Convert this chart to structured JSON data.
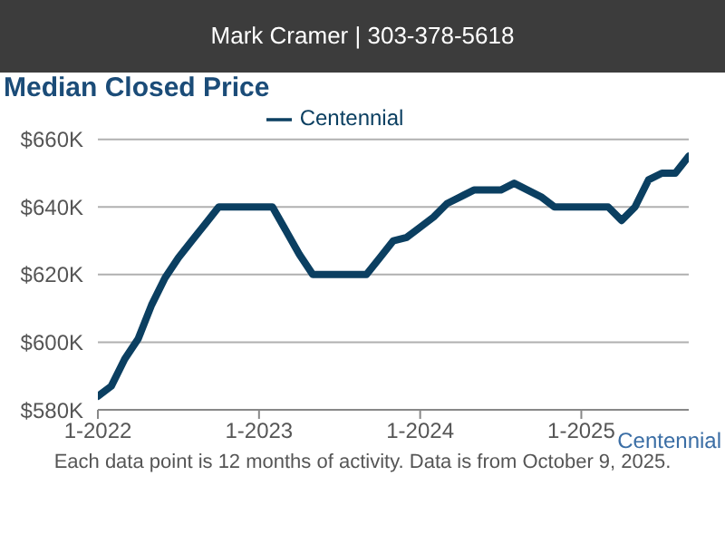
{
  "chart_data": {
    "type": "line",
    "title": "Median Closed Price",
    "annotations": [
      "Mark Cramer | 303-378-5618",
      "Each data point is 12 months of activity. Data is from October 9, 2025.",
      "Centennial"
    ],
    "x": [
      "2022-01",
      "2022-02",
      "2022-03",
      "2022-04",
      "2022-05",
      "2022-06",
      "2022-07",
      "2022-08",
      "2022-09",
      "2022-10",
      "2022-11",
      "2022-12",
      "2023-01",
      "2023-02",
      "2023-03",
      "2023-04",
      "2023-05",
      "2023-06",
      "2023-07",
      "2023-08",
      "2023-09",
      "2023-10",
      "2023-11",
      "2023-12",
      "2024-01",
      "2024-02",
      "2024-03",
      "2024-04",
      "2024-05",
      "2024-06",
      "2024-07",
      "2024-08",
      "2024-09",
      "2024-10",
      "2024-11",
      "2024-12",
      "2025-01",
      "2025-02",
      "2025-03",
      "2025-04",
      "2025-05",
      "2025-06",
      "2025-07",
      "2025-08",
      "2025-09"
    ],
    "series": [
      {
        "name": "Centennial",
        "color": "#0b3f61",
        "values": [
          584,
          587,
          595,
          601,
          611,
          619,
          625,
          630,
          635,
          640,
          640,
          640,
          640,
          640,
          633,
          626,
          620,
          620,
          620,
          620,
          620,
          625,
          630,
          631,
          634,
          637,
          641,
          643,
          645,
          645,
          645,
          647,
          645,
          643,
          640,
          640,
          640,
          640,
          640,
          636,
          640,
          648,
          650,
          650,
          655
        ]
      }
    ],
    "xlim": [
      "2022-01",
      "2025-09"
    ],
    "xticks": [
      {
        "value": "2022-01",
        "label": "1-2022"
      },
      {
        "value": "2023-01",
        "label": "1-2023"
      },
      {
        "value": "2024-01",
        "label": "1-2024"
      },
      {
        "value": "2025-01",
        "label": "1-2025"
      }
    ],
    "ylim": [
      580,
      660
    ],
    "yticks": [
      {
        "value": 580,
        "label": "$580K"
      },
      {
        "value": 600,
        "label": "$600K"
      },
      {
        "value": 620,
        "label": "$620K"
      },
      {
        "value": 640,
        "label": "$640K"
      },
      {
        "value": 660,
        "label": "$660K"
      }
    ],
    "grid": "y",
    "legend": "top",
    "marker": "none",
    "line_style": "solid"
  }
}
